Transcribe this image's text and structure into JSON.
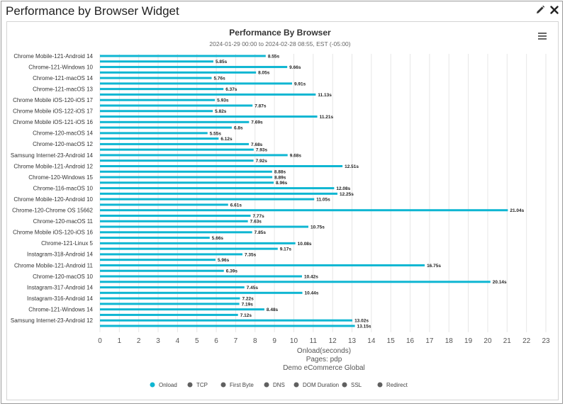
{
  "widget": {
    "title": "Performance by Browser Widget",
    "edit_icon": "pencil-icon",
    "close_icon": "close-icon",
    "menu_icon": "hamburger-menu-icon"
  },
  "colors": {
    "onload": "#0fb6d2",
    "inactive_legend": "#606060",
    "grid": "#e6e6e6",
    "text": "#333333",
    "subtext": "#666666"
  },
  "chart_data": {
    "type": "bar",
    "orientation": "horizontal",
    "title": "Performance By Browser",
    "subtitle": "2024-01-29 00:00 to 2024-02-28 08:55, EST (-05:00)",
    "xlabel": "Onload(seconds)",
    "caption_lines": [
      "Pages: pdp",
      "Demo eCommerce Global"
    ],
    "xlim": [
      0,
      23
    ],
    "xticks": [
      0,
      1,
      2,
      3,
      4,
      5,
      6,
      7,
      8,
      9,
      10,
      11,
      12,
      13,
      14,
      15,
      16,
      17,
      18,
      19,
      20,
      21,
      22,
      23
    ],
    "value_suffix": "s",
    "categories": [
      "Chrome Mobile-121-Android 14",
      "Chrome-121-Windows 10",
      "Chrome-121-macOS 14",
      "Chrome-121-macOS 13",
      "Chrome Mobile iOS-120-iOS 17",
      "Chrome Mobile iOS-122-iOS 17",
      "Chrome Mobile iOS-121-iOS 16",
      "Chrome-120-macOS 14",
      "Chrome-120-macOS 12",
      "Samsung Internet-23-Android 14",
      "Chrome Mobile-121-Android 12",
      "Chrome-120-Windows 15",
      "Chrome-116-macOS 10",
      "Chrome Mobile-120-Android 10",
      "Chrome-120-Chrome OS 15662",
      "Chrome-120-macOS 11",
      "Chrome Mobile iOS-120-iOS 16",
      "Chrome-121-Linux 5",
      "Instagram-318-Android 14",
      "Chrome Mobile-121-Android 11",
      "Chrome-120-macOS 10",
      "Instagram-317-Android 14",
      "Instagram-316-Android 14",
      "Chrome-121-Windows 14",
      "Samsung Internet-23-Android 12"
    ],
    "series": [
      {
        "name": "Onload",
        "active": true,
        "values": [
          [
            8.55,
            5.85
          ],
          [
            9.66,
            8.05
          ],
          [
            5.76,
            9.91
          ],
          [
            6.37,
            11.13
          ],
          [
            5.93,
            7.87
          ],
          [
            5.82,
            11.21
          ],
          [
            7.69,
            6.8
          ],
          [
            5.55,
            6.12
          ],
          [
            7.68,
            7.93
          ],
          [
            9.68,
            7.92
          ],
          [
            12.51,
            8.88
          ],
          [
            8.89,
            8.96
          ],
          [
            12.08,
            12.25
          ],
          [
            11.05,
            6.61
          ],
          [
            21.04,
            7.77
          ],
          [
            7.63,
            10.75
          ],
          [
            7.85,
            5.66
          ],
          [
            10.08,
            9.17
          ],
          [
            7.35,
            5.96
          ],
          [
            16.75,
            6.39
          ],
          [
            10.42,
            20.14
          ],
          [
            7.45,
            10.44
          ],
          [
            7.22,
            7.19
          ],
          [
            8.48,
            7.12
          ],
          [
            13.02,
            13.15
          ]
        ]
      },
      {
        "name": "TCP",
        "active": false
      },
      {
        "name": "First Byte",
        "active": false
      },
      {
        "name": "DNS",
        "active": false
      },
      {
        "name": "DOM Duration",
        "active": false
      },
      {
        "name": "SSL",
        "active": false
      },
      {
        "name": "Redirect",
        "active": false
      }
    ],
    "grid": true,
    "legend_position": "bottom"
  }
}
